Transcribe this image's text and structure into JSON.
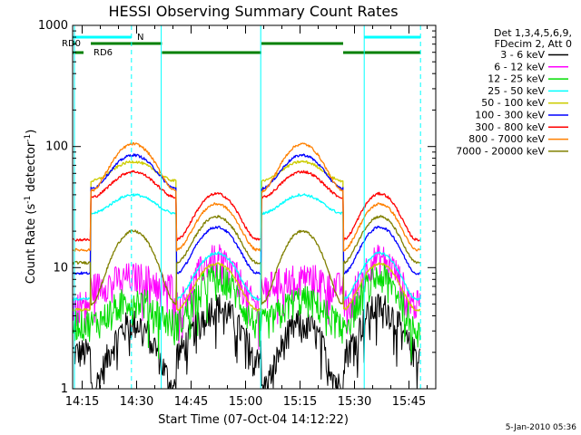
{
  "chart_data": {
    "type": "line",
    "title": "HESSI Observing Summary Count Rates",
    "xlabel": "Start Time (07-Oct-04 14:12:22)",
    "ylabel_prefix": "Count Rate (s",
    "ylabel_sup1": "-1",
    "ylabel_mid": " detector",
    "ylabel_sup2": "-1",
    "ylabel_suffix": ")",
    "y_scale": "log",
    "ylim": [
      1,
      1000
    ],
    "xlim_minutes": [
      0,
      100
    ],
    "x_ticks": [
      {
        "minute": 2.63,
        "label": "14:15"
      },
      {
        "minute": 17.63,
        "label": "14:30"
      },
      {
        "minute": 32.63,
        "label": "14:45"
      },
      {
        "minute": 47.63,
        "label": "15:00"
      },
      {
        "minute": 62.63,
        "label": "15:15"
      },
      {
        "minute": 77.63,
        "label": "15:30"
      },
      {
        "minute": 92.63,
        "label": "15:45"
      }
    ],
    "y_ticks": [
      {
        "value": 1,
        "label": "1"
      },
      {
        "value": 10,
        "label": "10"
      },
      {
        "value": 100,
        "label": "100"
      },
      {
        "value": 1000,
        "label": "1000"
      }
    ],
    "legend_header": [
      "Det 1,3,4,5,6,9,",
      "FDecim 2, Att 0"
    ],
    "legend_position": "right",
    "series": [
      {
        "name": "3 - 6 keV",
        "color": "#000000",
        "night": 2,
        "day_min": 1.0,
        "day_peak": 3.5
      },
      {
        "name": "6 - 12 keV",
        "color": "#ff00ff",
        "night": 5.0,
        "day_min": 7.0,
        "day_peak": 8.5
      },
      {
        "name": "12 - 25 keV",
        "color": "#00dd00",
        "night": 3.5,
        "day_min": 3.5,
        "day_peak": 5.5
      },
      {
        "name": "25 - 50 keV",
        "color": "#00ffff",
        "night": 5.5,
        "day_min": 28,
        "day_peak": 40
      },
      {
        "name": "50 - 100 keV",
        "color": "#cccc00",
        "night": 4.5,
        "day_min": 52,
        "day_peak": 75
      },
      {
        "name": "100 - 300 keV",
        "color": "#0000ff",
        "night": 9.0,
        "day_min": 45,
        "day_peak": 85
      },
      {
        "name": "300 - 800 keV",
        "color": "#ff0000",
        "night": 17,
        "day_min": 38,
        "day_peak": 62
      },
      {
        "name": "800 - 7000 keV",
        "color": "#ff8000",
        "night": 14,
        "day_min": 43,
        "day_peak": 105
      },
      {
        "name": "7000 - 20000 keV",
        "color": "#808000",
        "night": 11,
        "day_min": 5.0,
        "day_peak": 20
      }
    ],
    "day_intervals_minutes": [
      [
        5.0,
        28.5
      ],
      [
        52.0,
        74.5
      ]
    ],
    "flags": [
      {
        "name": "N",
        "color": "#00ffff",
        "intervals": [
          [
            0,
            16.2
          ],
          [
            80.3,
            95.8
          ]
        ]
      },
      {
        "name": "RD0",
        "color": "#008000",
        "intervals": [
          [
            0,
            0.8
          ],
          [
            5.0,
            24.6
          ],
          [
            52.0,
            74.5
          ]
        ]
      },
      {
        "name": "RD6",
        "color": "#008000",
        "intervals": [
          [
            0,
            3.0
          ],
          [
            24.6,
            52.0
          ],
          [
            74.5,
            95.8
          ]
        ]
      }
    ],
    "event_lines_minutes": [
      {
        "minute": 0.5,
        "style": "solid"
      },
      {
        "minute": 16.2,
        "style": "dashed"
      },
      {
        "minute": 24.4,
        "style": "solid"
      },
      {
        "minute": 51.8,
        "style": "solid"
      },
      {
        "minute": 80.3,
        "style": "solid"
      },
      {
        "minute": 95.8,
        "style": "dashed"
      }
    ]
  },
  "footer": {
    "date": "5-Jan-2010 05:36"
  }
}
